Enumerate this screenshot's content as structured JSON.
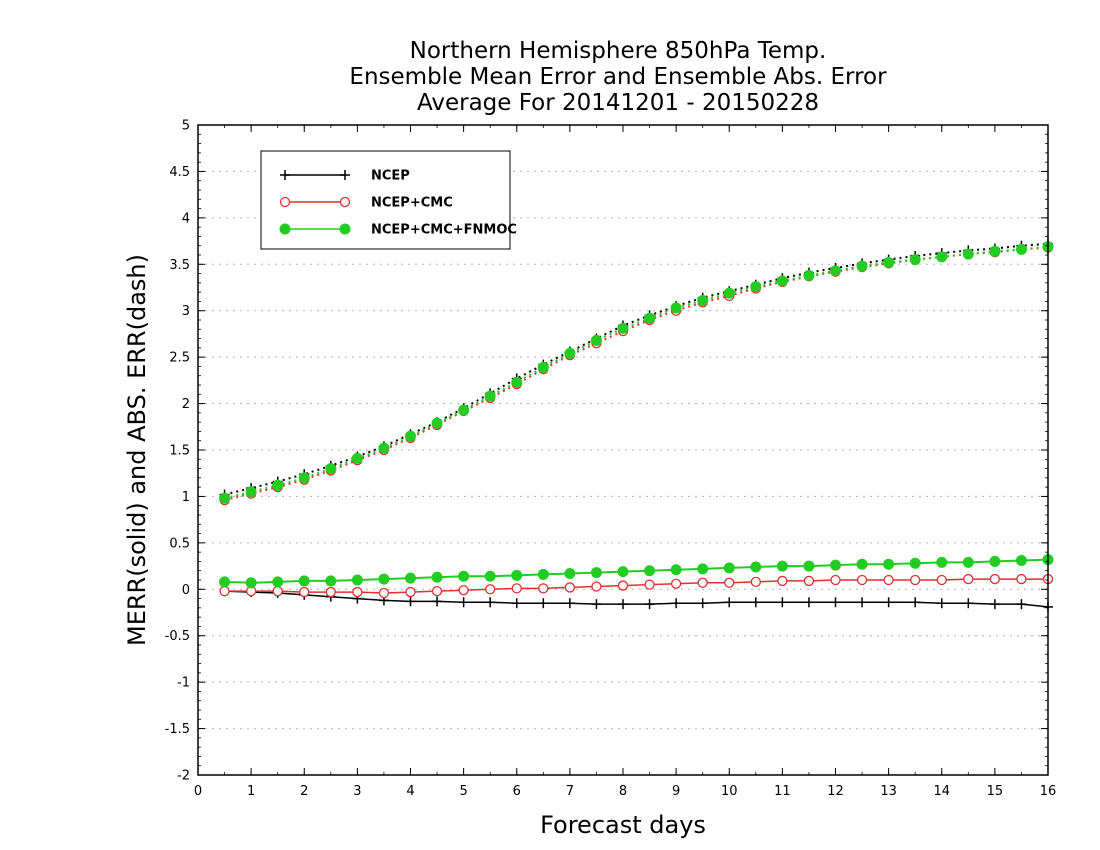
{
  "chart_data": {
    "type": "line",
    "title_lines": [
      "Northern Hemisphere 850hPa Temp.",
      "Ensemble Mean Error and Ensemble Abs. Error",
      "Average For 20141201 - 20150228"
    ],
    "xlabel": "Forecast days",
    "ylabel": "MERR(solid) and ABS. ERR(dash)",
    "xlim": [
      0,
      16
    ],
    "ylim": [
      -2,
      5
    ],
    "x_ticks": [
      "0",
      "1",
      "2",
      "3",
      "4",
      "5",
      "6",
      "7",
      "8",
      "9",
      "10",
      "11",
      "12",
      "13",
      "14",
      "15",
      "16"
    ],
    "y_ticks": [
      "-2",
      "-1.5",
      "-1",
      "-0.5",
      "0",
      "0.5",
      "1",
      "1.5",
      "2",
      "2.5",
      "3",
      "3.5",
      "4",
      "4.5",
      "5"
    ],
    "grid": true,
    "legend_position": "top-left",
    "x": [
      0.5,
      1,
      1.5,
      2,
      2.5,
      3,
      3.5,
      4,
      4.5,
      5,
      5.5,
      6,
      6.5,
      7,
      7.5,
      8,
      8.5,
      9,
      9.5,
      10,
      10.5,
      11,
      11.5,
      12,
      12.5,
      13,
      13.5,
      14,
      14.5,
      15,
      15.5,
      16
    ],
    "series": [
      {
        "name": "NCEP",
        "color": "#000000",
        "marker": "plus",
        "merr": [
          -0.02,
          -0.03,
          -0.04,
          -0.06,
          -0.08,
          -0.1,
          -0.12,
          -0.13,
          -0.13,
          -0.14,
          -0.14,
          -0.15,
          -0.15,
          -0.15,
          -0.16,
          -0.16,
          -0.16,
          -0.15,
          -0.15,
          -0.14,
          -0.14,
          -0.14,
          -0.14,
          -0.14,
          -0.14,
          -0.14,
          -0.14,
          -0.15,
          -0.15,
          -0.16,
          -0.16,
          -0.19
        ],
        "abs_err": [
          1.02,
          1.09,
          1.16,
          1.24,
          1.33,
          1.43,
          1.54,
          1.67,
          1.8,
          1.95,
          2.11,
          2.27,
          2.42,
          2.56,
          2.7,
          2.84,
          2.95,
          3.05,
          3.14,
          3.21,
          3.28,
          3.35,
          3.41,
          3.46,
          3.51,
          3.55,
          3.59,
          3.62,
          3.65,
          3.67,
          3.7,
          3.72
        ]
      },
      {
        "name": "NCEP+CMC",
        "color": "#e03030",
        "marker": "open-circle",
        "merr": [
          -0.02,
          -0.02,
          -0.02,
          -0.03,
          -0.03,
          -0.03,
          -0.04,
          -0.03,
          -0.02,
          -0.01,
          0.0,
          0.01,
          0.01,
          0.02,
          0.03,
          0.04,
          0.05,
          0.06,
          0.07,
          0.07,
          0.08,
          0.09,
          0.09,
          0.1,
          0.1,
          0.1,
          0.1,
          0.1,
          0.11,
          0.11,
          0.11,
          0.11
        ],
        "abs_err": [
          0.96,
          1.03,
          1.1,
          1.18,
          1.28,
          1.39,
          1.5,
          1.63,
          1.77,
          1.92,
          2.06,
          2.21,
          2.37,
          2.52,
          2.65,
          2.78,
          2.9,
          3.0,
          3.09,
          3.16,
          3.24,
          3.31,
          3.37,
          3.42,
          3.47,
          3.51,
          3.55,
          3.58,
          3.61,
          3.63,
          3.66,
          3.68
        ]
      },
      {
        "name": "NCEP+CMC+FNMOC",
        "color": "#22cc22",
        "marker": "filled-circle",
        "merr": [
          0.08,
          0.07,
          0.08,
          0.09,
          0.09,
          0.1,
          0.11,
          0.12,
          0.13,
          0.14,
          0.14,
          0.15,
          0.16,
          0.17,
          0.18,
          0.19,
          0.2,
          0.21,
          0.22,
          0.23,
          0.24,
          0.25,
          0.25,
          0.26,
          0.27,
          0.27,
          0.28,
          0.29,
          0.29,
          0.3,
          0.31,
          0.32
        ],
        "abs_err": [
          0.98,
          1.05,
          1.12,
          1.2,
          1.3,
          1.41,
          1.52,
          1.65,
          1.79,
          1.93,
          2.08,
          2.23,
          2.39,
          2.54,
          2.68,
          2.81,
          2.92,
          3.03,
          3.11,
          3.19,
          3.26,
          3.32,
          3.38,
          3.43,
          3.48,
          3.52,
          3.55,
          3.58,
          3.61,
          3.64,
          3.66,
          3.69
        ]
      }
    ]
  }
}
